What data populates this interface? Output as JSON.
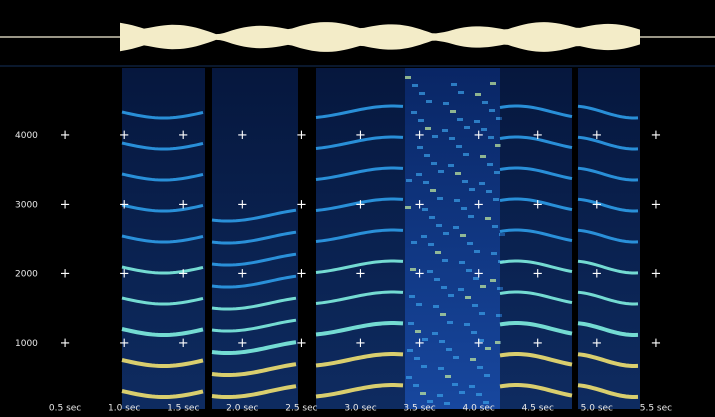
{
  "chart_data": {
    "type": "spectrogram",
    "xlim": [
      0,
      6
    ],
    "ylim": [
      0,
      5000
    ],
    "xticks": [
      {
        "value": 0.5,
        "label": "0.5 sec"
      },
      {
        "value": 1.0,
        "label": "1.0 sec"
      },
      {
        "value": 1.5,
        "label": "1.5 sec"
      },
      {
        "value": 2.0,
        "label": "2.0 sec"
      },
      {
        "value": 2.5,
        "label": "2.5 sec"
      },
      {
        "value": 3.0,
        "label": "3.0 sec"
      },
      {
        "value": 3.5,
        "label": "3.5 sec"
      },
      {
        "value": 4.0,
        "label": "4.0 sec"
      },
      {
        "value": 4.5,
        "label": "4.5 sec"
      },
      {
        "value": 5.0,
        "label": "5.0 sec"
      },
      {
        "value": 5.5,
        "label": "5.5 sec"
      }
    ],
    "yticks": [
      1000,
      2000,
      3000,
      4000
    ],
    "grid": true
  }
}
